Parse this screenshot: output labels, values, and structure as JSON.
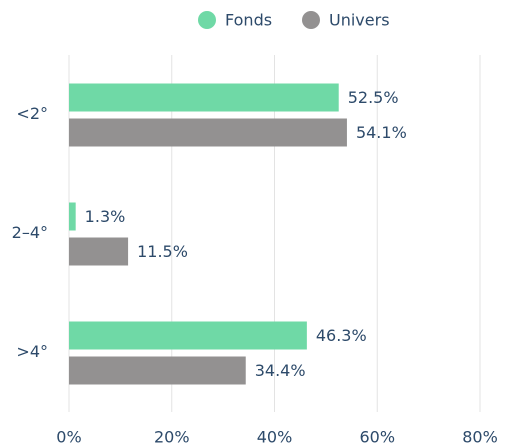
{
  "chart_data": {
    "type": "bar",
    "orientation": "horizontal",
    "categories": [
      "<2°",
      "2–4°",
      ">4°"
    ],
    "series": [
      {
        "name": "Fonds",
        "color": "#6fd9a6",
        "values": [
          52.5,
          1.3,
          46.3
        ],
        "value_labels": [
          "52.5%",
          "1.3%",
          "46.3%"
        ]
      },
      {
        "name": "Univers",
        "color": "#939191",
        "values": [
          54.1,
          11.5,
          34.4
        ],
        "value_labels": [
          "54.1%",
          "11.5%",
          "34.4%"
        ]
      }
    ],
    "xlim": [
      0,
      80
    ],
    "xticks": [
      {
        "value": 0,
        "label": "0%"
      },
      {
        "value": 20,
        "label": "20%"
      },
      {
        "value": 40,
        "label": "40%"
      },
      {
        "value": 60,
        "label": "60%"
      },
      {
        "value": 80,
        "label": "80%"
      }
    ],
    "grid": true,
    "legend": "top"
  }
}
